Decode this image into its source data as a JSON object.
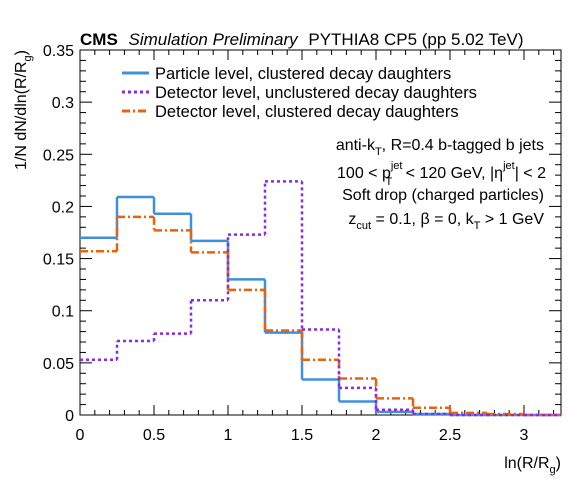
{
  "header": {
    "experiment": "CMS",
    "status": "Simulation Preliminary",
    "generator": "PYTHIA8 CP5 (pp 5.02 TeV)"
  },
  "annotations": {
    "line1": "anti-k",
    "line1_sub": "T",
    "line1_rest": ", R=0.4 b-tagged b jets",
    "line2_a": "100 < p",
    "line2_sup": "jet",
    "line2_sub": "T",
    "line2_b": " < 120 GeV, |η",
    "line2_sup2": "jet",
    "line2_c": "| < 2",
    "line3": "Soft drop (charged particles)",
    "line4_a": "z",
    "line4_sub": "cut",
    "line4_b": " = 0.1, β = 0, k",
    "line4_sub2": "T",
    "line4_c": " > 1 GeV"
  },
  "chart_data": {
    "type": "line",
    "style": "step-histogram",
    "xlabel": "ln(R/R",
    "xlabel_sub": "g",
    "xlabel_end": ")",
    "ylabel": "1/N dN/dln(R/R",
    "ylabel_sub": "g",
    "ylabel_end": ")",
    "xlim": [
      0,
      3.25
    ],
    "ylim": [
      0,
      0.35
    ],
    "xticks": [
      "0",
      "0.5",
      "1",
      "1.5",
      "2",
      "2.5",
      "3"
    ],
    "xtick_values": [
      0,
      0.5,
      1,
      1.5,
      2,
      2.5,
      3
    ],
    "yticks": [
      "0",
      "0.05",
      "0.1",
      "0.15",
      "0.2",
      "0.25",
      "0.3",
      "0.35"
    ],
    "ytick_values": [
      0,
      0.05,
      0.1,
      0.15,
      0.2,
      0.25,
      0.3,
      0.35
    ],
    "bin_edges": [
      0,
      0.25,
      0.5,
      0.75,
      1.0,
      1.25,
      1.5,
      1.75,
      2.0,
      2.25,
      2.5,
      2.75,
      3.0,
      3.25
    ],
    "series": [
      {
        "name": "Particle level, clustered decay daughters",
        "color": "#3f90da",
        "dash": "solid",
        "values": [
          0.17,
          0.209,
          0.193,
          0.167,
          0.13,
          0.079,
          0.034,
          0.013,
          0.003,
          0.001,
          0.0,
          0.0,
          0.0
        ]
      },
      {
        "name": "Detector level, unclustered decay daughters",
        "color": "#8a2be2",
        "dash": "dotted",
        "values": [
          0.053,
          0.071,
          0.078,
          0.11,
          0.173,
          0.224,
          0.082,
          0.026,
          0.005,
          0.001,
          0.0,
          0.0,
          0.0
        ]
      },
      {
        "name": "Detector level, clustered decay daughters",
        "color": "#e8630a",
        "dash": "dashdot",
        "values": [
          0.157,
          0.19,
          0.177,
          0.156,
          0.12,
          0.081,
          0.053,
          0.035,
          0.016,
          0.007,
          0.002,
          0.001,
          0.0
        ]
      }
    ],
    "grid": false,
    "legend_position": "top"
  }
}
